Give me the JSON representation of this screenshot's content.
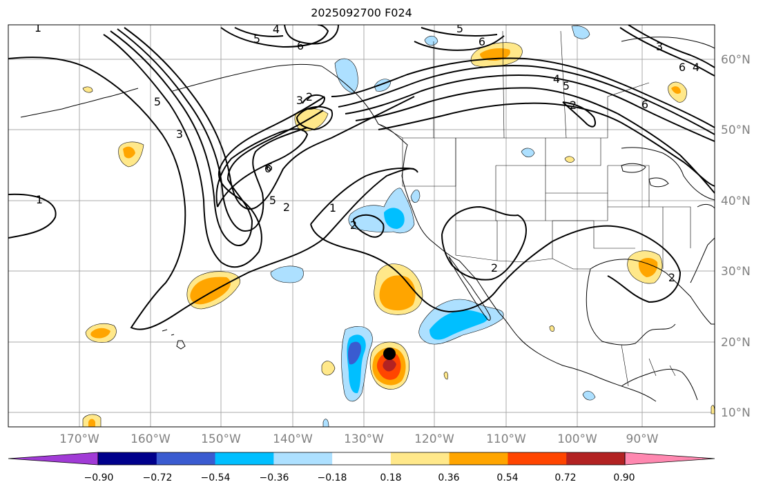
{
  "title": "2025092700 F024",
  "longitude_labels": [
    "170°W",
    "160°W",
    "150°W",
    "140°W",
    "130°W",
    "120°W",
    "110°W",
    "100°W",
    "90°W"
  ],
  "latitude_labels": [
    "60°N",
    "50°N",
    "40°N",
    "30°N",
    "20°N",
    "10°N"
  ],
  "colorbar": {
    "tick_labels": [
      "−0.90",
      "−0.72",
      "−0.54",
      "−0.36",
      "−0.18",
      "0.18",
      "0.36",
      "0.54",
      "0.72",
      "0.90"
    ],
    "colors": [
      "#a13bd6",
      "#00008b",
      "#3a5bd0",
      "#00bfff",
      "#ade0ff",
      "#ffffff",
      "#ffe88a",
      "#ffa500",
      "#ff4500",
      "#b22222",
      "#ff88b0"
    ]
  },
  "contour_labels": [
    "1",
    "4",
    "5",
    "6",
    "5",
    "6",
    "3",
    "6",
    "4",
    "5",
    "3",
    "2",
    "6",
    "5",
    "4",
    "6",
    "5",
    "2",
    "1",
    "1",
    "2",
    "2",
    "2",
    "3",
    "2",
    "6"
  ],
  "colors": {
    "contour": "#000000",
    "grid": "#9a9a9a",
    "coast": "#000000",
    "axis_label": "#808080"
  }
}
